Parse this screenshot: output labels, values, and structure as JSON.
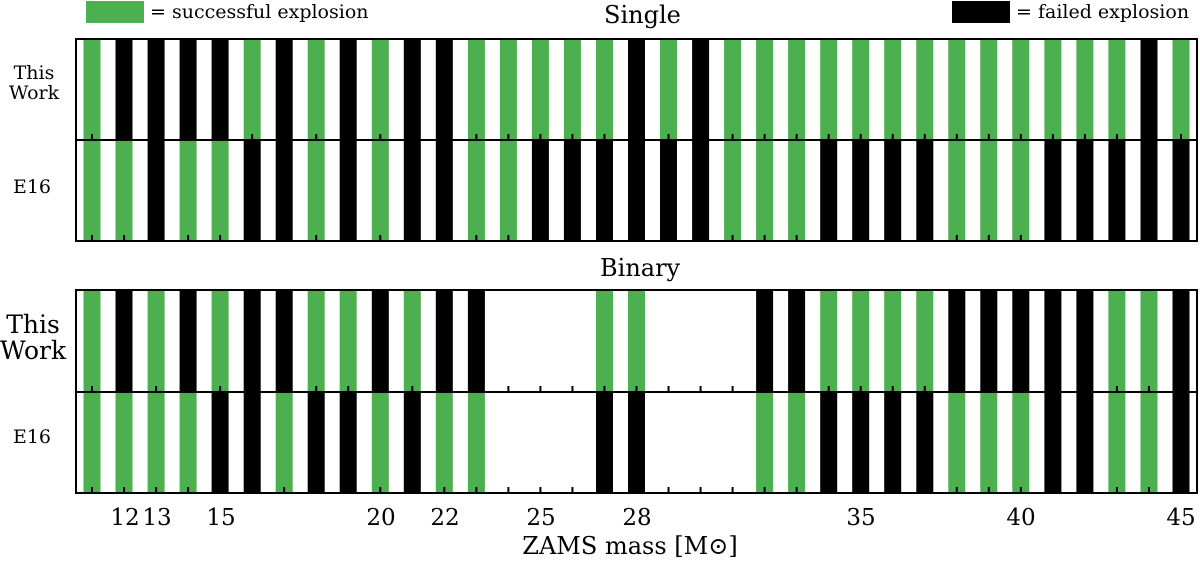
{
  "legend": {
    "success": {
      "label": "= successful explosion",
      "color": "#4caf50"
    },
    "fail": {
      "label": "= failed explosion",
      "color": "#000000"
    }
  },
  "chart_data": {
    "type": "categorical strip",
    "xlabel": "ZAMS mass [M⊙]",
    "x_tick_labels": [
      "12",
      "13",
      "15",
      "20",
      "22",
      "25",
      "28",
      "35",
      "40",
      "45"
    ],
    "row_labels": [
      "This Work",
      "E16"
    ],
    "panels": [
      {
        "title": "Single",
        "this_work": "GFFFFGFGFGFFGGGGGFGFGGGGGGGGGGGGGFG",
        "e16": "GGFGGFFGFGFFGGFFFFFFGGGFFFFGGGFFFFF"
      },
      {
        "title": "Binary",
        "this_work": "GFGFGFFGGFGFF...GG...FFGGGGFFFFFGGF",
        "e16": "GGGGFFGFFGFGG...FF...GGFFFFGGGFFGGF"
      }
    ],
    "encoding": {
      "G": "successful explosion",
      "F": "failed explosion",
      ".": "no model"
    }
  }
}
